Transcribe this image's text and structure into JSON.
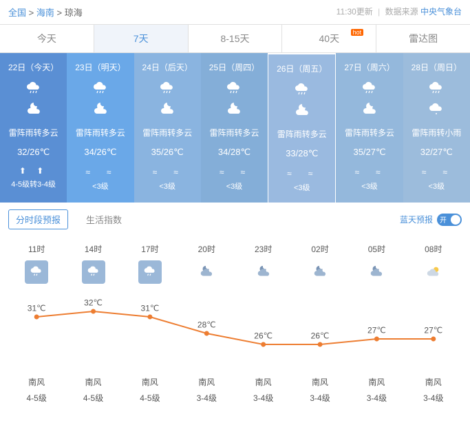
{
  "breadcrumb": {
    "nation": "全国",
    "province": "海南",
    "city": "琼海"
  },
  "meta": {
    "update": "11:30更新",
    "source_label": "数据来源",
    "source": "中央气象台"
  },
  "tabs": [
    {
      "label": "今天"
    },
    {
      "label": "7天"
    },
    {
      "label": "8-15天"
    },
    {
      "label": "40天",
      "hot": "hot"
    },
    {
      "label": "雷达图"
    }
  ],
  "days": [
    {
      "date": "22日（今天）",
      "desc": "雷阵雨转多云",
      "temp": "32/26℃",
      "wi": "⬆ ⬆",
      "wind": "4-5级转3-4级",
      "cls": "d0"
    },
    {
      "date": "23日（明天）",
      "desc": "雷阵雨转多云",
      "temp": "34/26℃",
      "wi": "≈　≈",
      "wind": "<3级",
      "cls": "d1"
    },
    {
      "date": "24日（后天）",
      "desc": "雷阵雨转多云",
      "temp": "35/26℃",
      "wi": "≈　≈",
      "wind": "<3级",
      "cls": "d2"
    },
    {
      "date": "25日（周四）",
      "desc": "雷阵雨转多云",
      "temp": "34/28℃",
      "wi": "≈　≈",
      "wind": "<3级",
      "cls": "d3"
    },
    {
      "date": "26日（周五）",
      "desc": "雷阵雨转多云",
      "temp": "33/28℃",
      "wi": "≈　≈",
      "wind": "<3级",
      "cls": "d4"
    },
    {
      "date": "27日（周六）",
      "desc": "雷阵雨转多云",
      "temp": "35/27℃",
      "wi": "≈　≈",
      "wind": "<3级",
      "cls": "d5"
    },
    {
      "date": "28日（周日）",
      "desc": "雷阵雨转小雨",
      "temp": "32/27℃",
      "wi": "≈　≈",
      "wind": "<3级",
      "cls": "d6"
    }
  ],
  "subtabs": {
    "hourly": "分时段预报",
    "life": "生活指数",
    "bluesky": "蓝天预报",
    "switch": "开"
  },
  "hourly": {
    "times": [
      "11时",
      "14时",
      "17时",
      "20时",
      "23时",
      "02时",
      "05时",
      "08时"
    ],
    "icons": [
      "rain",
      "rain",
      "rain",
      "night-cloud",
      "night-cloud",
      "night-cloud",
      "night-cloud",
      "sun-cloud"
    ],
    "icon_box": [
      true,
      true,
      true,
      false,
      false,
      false,
      false,
      false
    ],
    "temps": [
      31,
      32,
      31,
      28,
      26,
      26,
      27,
      27
    ],
    "wind_dir": [
      "南风",
      "南风",
      "南风",
      "南风",
      "南风",
      "南风",
      "南风",
      "南风"
    ],
    "wind_lvl": [
      "4-5级",
      "4-5级",
      "4-5级",
      "3-4级",
      "3-4级",
      "3-4级",
      "3-4级",
      "3-4级"
    ],
    "line_color": "#ed7d31",
    "y_min": 24,
    "y_max": 34
  }
}
